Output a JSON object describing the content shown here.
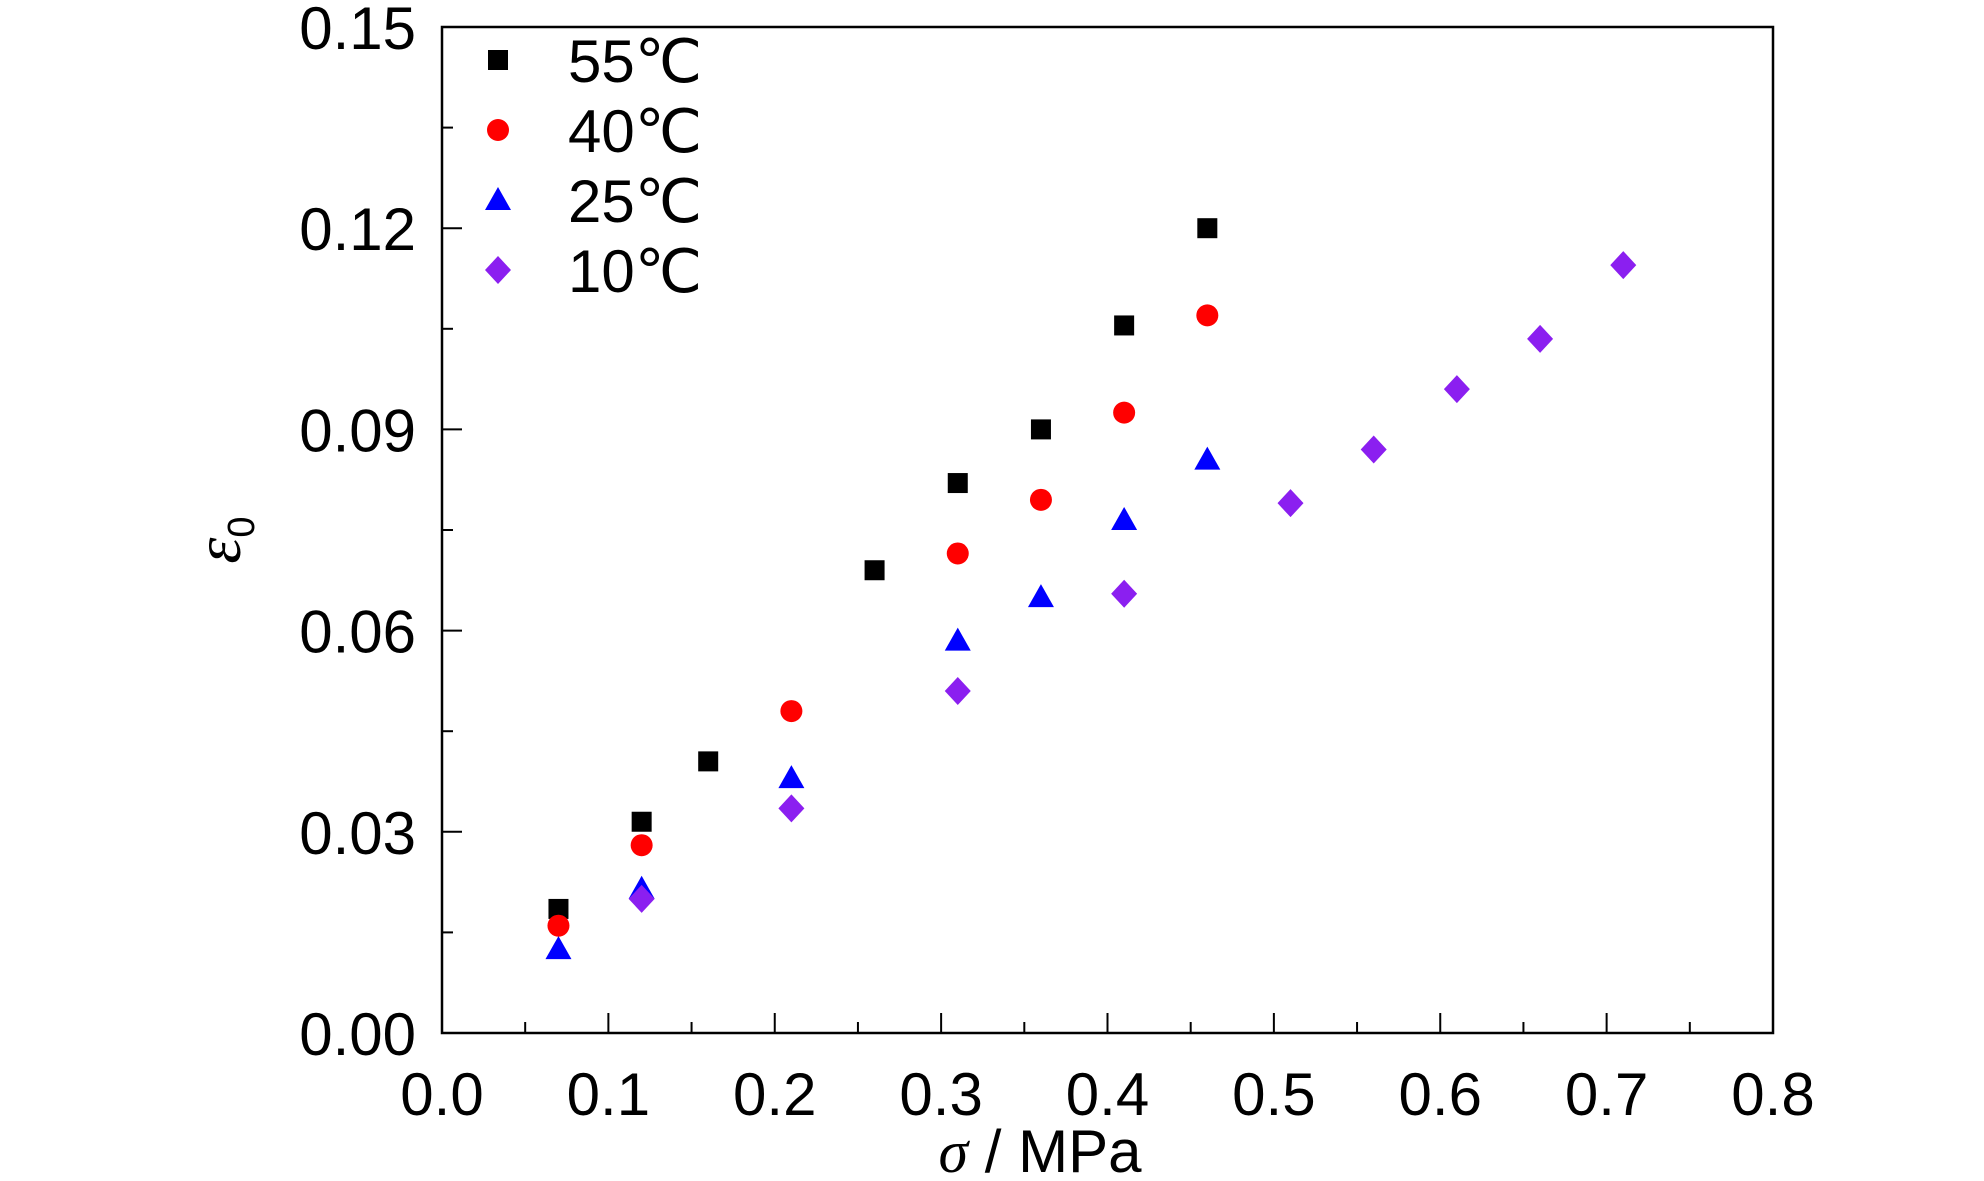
{
  "chart_data": {
    "type": "scatter",
    "title": "",
    "xlabel": {
      "symbol": "σ",
      "unit": " / MPa"
    },
    "ylabel": {
      "symbol": "ε",
      "subscript": "0"
    },
    "xlim": [
      0.0,
      0.8
    ],
    "ylim": [
      0.0,
      0.15
    ],
    "x_ticks": [
      "0.0",
      "0.1",
      "0.2",
      "0.3",
      "0.4",
      "0.5",
      "0.6",
      "0.7",
      "0.8"
    ],
    "y_ticks": [
      "0.00",
      "0.03",
      "0.06",
      "0.09",
      "0.12",
      "0.15"
    ],
    "grid": false,
    "legend_position": "top-left",
    "series": [
      {
        "name": "55℃",
        "marker": "square",
        "color": "#000000",
        "x": [
          0.07,
          0.12,
          0.16,
          0.26,
          0.31,
          0.36,
          0.41,
          0.46
        ],
        "y": [
          0.0185,
          0.0315,
          0.0405,
          0.069,
          0.082,
          0.09,
          0.1055,
          0.12
        ]
      },
      {
        "name": "40℃",
        "marker": "circle",
        "color": "#ff0000",
        "x": [
          0.07,
          0.12,
          0.21,
          0.31,
          0.36,
          0.41,
          0.46
        ],
        "y": [
          0.016,
          0.028,
          0.048,
          0.0715,
          0.0795,
          0.0925,
          0.107
        ]
      },
      {
        "name": "25℃",
        "marker": "triangle",
        "color": "#0000ff",
        "x": [
          0.07,
          0.12,
          0.21,
          0.31,
          0.36,
          0.41,
          0.46
        ],
        "y": [
          0.0125,
          0.0215,
          0.038,
          0.0585,
          0.065,
          0.0765,
          0.0855
        ]
      },
      {
        "name": "10℃",
        "marker": "diamond",
        "color": "#8b1ff0",
        "x": [
          0.12,
          0.21,
          0.31,
          0.41,
          0.51,
          0.56,
          0.61,
          0.66,
          0.71
        ],
        "y": [
          0.02,
          0.0335,
          0.051,
          0.0655,
          0.079,
          0.087,
          0.096,
          0.1035,
          0.1145
        ]
      }
    ]
  }
}
